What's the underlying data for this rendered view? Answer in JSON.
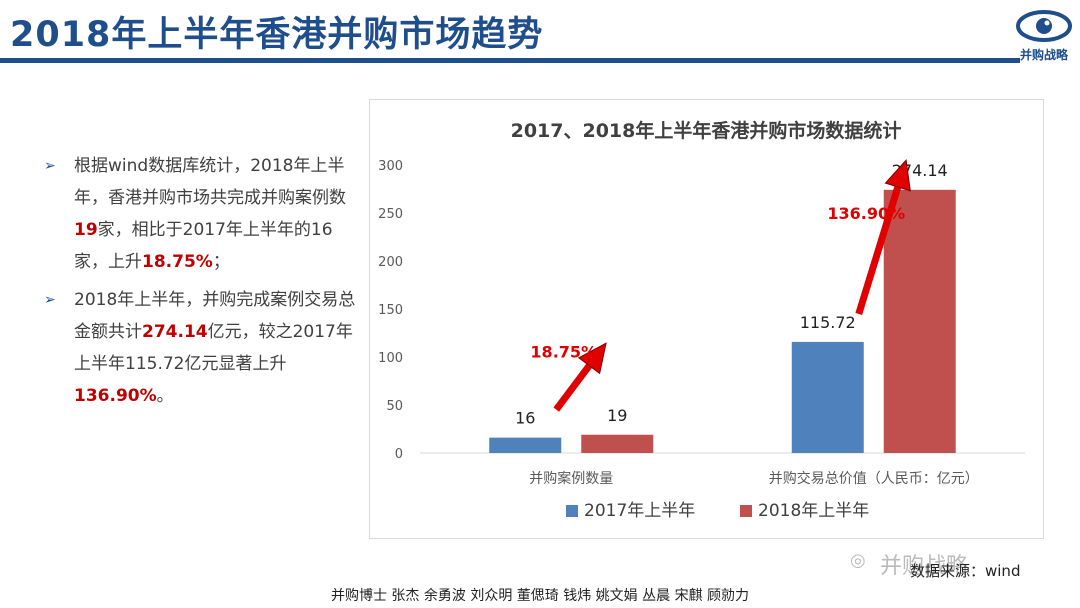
{
  "page": {
    "title": "2018年上半年香港并购市场趋势",
    "logo_text": "并购战略",
    "footer": "并购博士 张杰 余勇波 刘众明 董偲琦 钱炜 姚文娟 丛晨 宋麒 顾勍力",
    "source": "数据来源：wind",
    "watermark": "并购战略"
  },
  "bullets": [
    {
      "parts": [
        {
          "t": "根据wind数据库统计，2018年上半年，香港并购市场共完成并购案例数"
        },
        {
          "t": "19",
          "hl": true
        },
        {
          "t": "家，相比于2017年上半年的16家，上升"
        },
        {
          "t": "18.75%",
          "hl": true
        },
        {
          "t": "；"
        }
      ]
    },
    {
      "parts": [
        {
          "t": "2018年上半年，并购完成案例交易总金额共计"
        },
        {
          "t": "274.14",
          "hl": true
        },
        {
          "t": "亿元，较之2017年上半年115.72亿元显著上升"
        },
        {
          "t": "136.90%",
          "hl": true
        },
        {
          "t": "。"
        }
      ]
    }
  ],
  "chart_data": {
    "type": "bar",
    "title": "2017、2018年上半年香港并购市场数据统计",
    "categories": [
      "并购案例数量",
      "并购交易总价值（人民币：亿元）"
    ],
    "series": [
      {
        "name": "2017年上半年",
        "values": [
          16,
          115.72
        ],
        "labels": [
          "16",
          "115.72"
        ],
        "color": "#4f81bd"
      },
      {
        "name": "2018年上半年",
        "values": [
          19,
          274.14
        ],
        "labels": [
          "19",
          "274.14"
        ],
        "color": "#c0504d"
      }
    ],
    "ylim": [
      0,
      300
    ],
    "yticks": [
      0,
      50,
      100,
      150,
      200,
      250,
      300
    ],
    "legend_position": "bottom",
    "grid": false,
    "annotations": [
      {
        "text": "18.75%",
        "category": 0,
        "color": "#e00000"
      },
      {
        "text": "136.90%",
        "category": 1,
        "color": "#e00000"
      }
    ]
  }
}
